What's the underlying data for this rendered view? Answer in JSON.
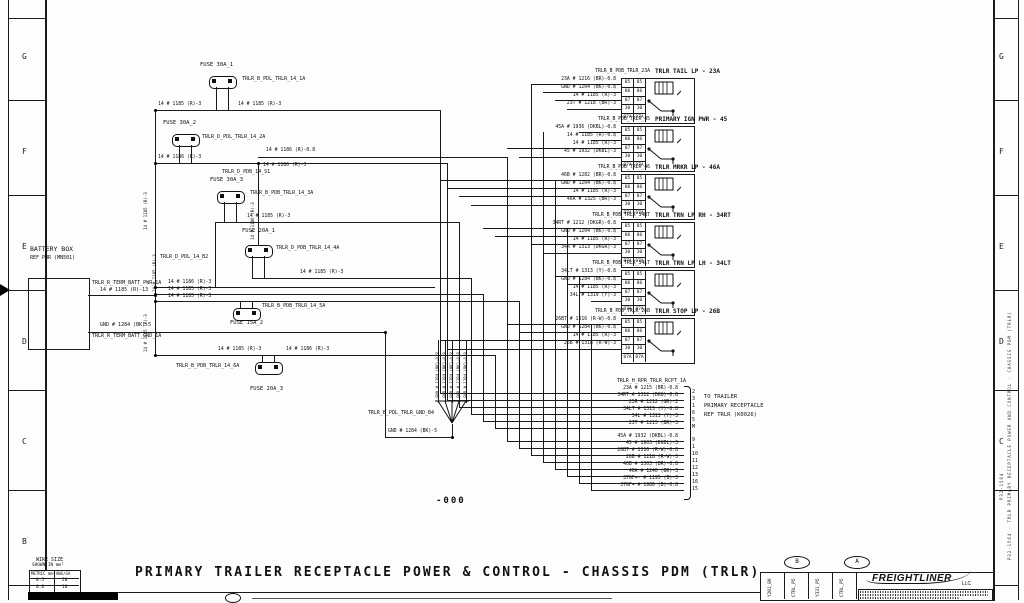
{
  "sheet": {
    "title": "PRIMARY TRAILER RECEPTACLE POWER & CONTROL - CHASSIS PDM (TRLR)",
    "page_ref": "-000"
  },
  "zones": {
    "left": [
      "G",
      "F",
      "E",
      "D",
      "C",
      "B"
    ],
    "right": [
      "G",
      "F",
      "E",
      "D",
      "C"
    ]
  },
  "wire_table": {
    "heading1": "WIRE SIZE",
    "heading2": "SHOWN IN mm²",
    "col1": "METRIC mm²",
    "col2": "AWG/GA",
    "rows": [
      [
        "0.5",
        "20"
      ],
      [
        "0.8",
        "18"
      ]
    ]
  },
  "battery": {
    "name": "BATTERY BOX",
    "ref": "REF PWR (MN501)",
    "pwr_label": "TRLR_R_TERM_BATT_PWR_1A",
    "pwr_wire": "14 # 1185 (R)-13",
    "gnd_wire": "GND # 1284 (BK)-5",
    "gnd_label": "TRLR_R_TERM_BATT_GND_1A"
  },
  "junction": {
    "label": "TRLR_D_PDL_14_B2",
    "fan": [
      "14 # 1186 (R)-3",
      "14 # 1185 (R)-3",
      "14 # 1185 (R)-3"
    ]
  },
  "misc": {
    "bus_wire": "14 # 1185 (R)-3"
  },
  "fuses": [
    {
      "name": "FUSE 30A_1",
      "label": "TRLR_B_PDL_TRLR_14_1A",
      "in": "14 # 1185 (R)-3",
      "out": "14 # 1185 (R)-3"
    },
    {
      "name": "FUSE 30A_2",
      "label": "TRLR_D_PDL_TRLR_14_2A",
      "in": "14 # 1186 (R)-3",
      "out": "14 # 1186 (R)-3",
      "out2": "14 # 1186 (R)-0.8",
      "tap": "TRLR_D_PDB_14_S1"
    },
    {
      "name": "FUSE 30A_3",
      "label": "TRLR_B_PDB_TRLR_14_3A",
      "out": "14 # 1185 (R)-3"
    },
    {
      "name": "FUSE 20A_1",
      "label": "TRLR_D_PDB_TRLR_14_4A",
      "feed": "14 # 1186 (R)-3",
      "out": "14 # 1185 (R)-3"
    },
    {
      "name": "FUSE 15A_2",
      "label": "TRLR_B_PDB_TRLR_14_5A"
    },
    {
      "name": "FUSE 20A_3",
      "label": "TRLR_B_PDB_TRLR_14_6A",
      "in": "14 # 1185 (R)-3",
      "out": "14 # 1186 (R)-3"
    }
  ],
  "splice": {
    "label": "TRLR_B_PDL_TRLR_GND_B4",
    "wire": "GND # 1284 (BK)-5",
    "bundle_wire": "GND # 1284 (BK)-0.8"
  },
  "relay_pins": [
    "85",
    "86",
    "87",
    "30",
    "87A"
  ],
  "relays": [
    {
      "id": "TRLR_B_PDB_TRLR_23A",
      "title": "TRLR TAIL LP - 23A",
      "wires": [
        "23A # 1216 (BR)-0.8",
        "GND # 1204 (BK)-0.8",
        "14 # 1185 (R)-3",
        "23T # 1218 (BR)-3"
      ]
    },
    {
      "id": "TRLR_B_PDB_TRLR_45",
      "title": "PRIMARY IGN PWR - 45",
      "wires": [
        "45A # 1936 (DKBL)-0.8",
        "14 # 1185 (R)-0.8",
        "14 # 1185 (R)-3",
        "45 # 1932 (DKBL)-3"
      ]
    },
    {
      "id": "TRLR_B_PDB_TRLR_46",
      "title": "TRLR MRKR LP - 46A",
      "wires": [
        "46B # 1282 (BR)-0.8",
        "GND # 1204 (BK)-0.8",
        "14 # 1185 (R)-3",
        "46A # 1325 (BR)-3"
      ]
    },
    {
      "id": "TRLR_B_PDB_TRLR_34RT",
      "title": "TRLR TRN LP RH - 34RT",
      "wires": [
        "34RT # 1212 (DKGR)-0.8",
        "GND # 1204 (BK)-0.8",
        "14 # 1185 (R)-3",
        "34R # 1313 (DKGR)-3"
      ]
    },
    {
      "id": "TRLR_B_PDB_TRLR_34LT",
      "title": "TRLR TRN LP LH - 34LT",
      "wires": [
        "34LT # 1313 (Y)-0.8",
        "GND # 1284 (BK)-0.8",
        "14 # 1185 (R)-3",
        "34L # 1319 (Y)-3"
      ]
    },
    {
      "id": "TRLR_B_PDB_TRLR_26B",
      "title": "TRLR STOP LP - 26B",
      "wires": [
        "26BT # 1316 (R-W)-0.8",
        "GND # 1284 (BK)-0.8",
        "14 # 1185 (R)-3",
        "26B # 1318 (R-W)-3"
      ]
    }
  ],
  "connector": {
    "id": "TRLR_H_RPR_TRLR_RCPT_1A",
    "note": [
      "TO TRAILER",
      "PRIMARY RECEPTACLE",
      "REF TRLR (K0026)"
    ],
    "wires": [
      {
        "label": "23A # 1215 (BR)-0.8",
        "pin": "2"
      },
      {
        "label": "34RT # 1312 (DKG)-0.8",
        "pin": "3"
      },
      {
        "label": "25R # 1212 (GR)-2",
        "pin": "1"
      },
      {
        "label": "34LT # 1313 (Y)-0.8",
        "pin": "6"
      },
      {
        "label": "34L # 1313 (Y)-3",
        "pin": "5"
      },
      {
        "label": "23T # 1215 (BR)-3",
        "pin": "M"
      },
      {
        "label": "45A # 1932 (DKBL)-0.8",
        "pin": "9"
      },
      {
        "label": "45 # 1903 (DKBL)-3",
        "pin": "1"
      },
      {
        "label": "26BT # 1316 (R-W)-0.8",
        "pin": "10"
      },
      {
        "label": "26B # 1218 (R-W)-3",
        "pin": "11"
      },
      {
        "label": "46B # 1303 (BR)-0.8",
        "pin": "12"
      },
      {
        "label": "46A # 1240 (BR)-3",
        "pin": "13"
      },
      {
        "label": "37GF+- # 1195 (B)-3",
        "pin": "16"
      },
      {
        "label": "37GF+ # 1986 (B)-0.8",
        "pin": "15"
      }
    ]
  },
  "titleblock": {
    "ovals": [
      "B",
      "A"
    ],
    "columns": [
      "Y201_B9",
      "CTRL_P5",
      "Y331_P5",
      "CTRL_P5"
    ],
    "logo": "FREIGHTLINER",
    "logo_sub": "LLC"
  },
  "margin": {
    "right_text": "P32-1564 - TRLR PRIMARY RECEPTACLE POWER AND CONTROL - CHASSIS PDM (TRLR)",
    "right_text2": "P32-1564"
  }
}
